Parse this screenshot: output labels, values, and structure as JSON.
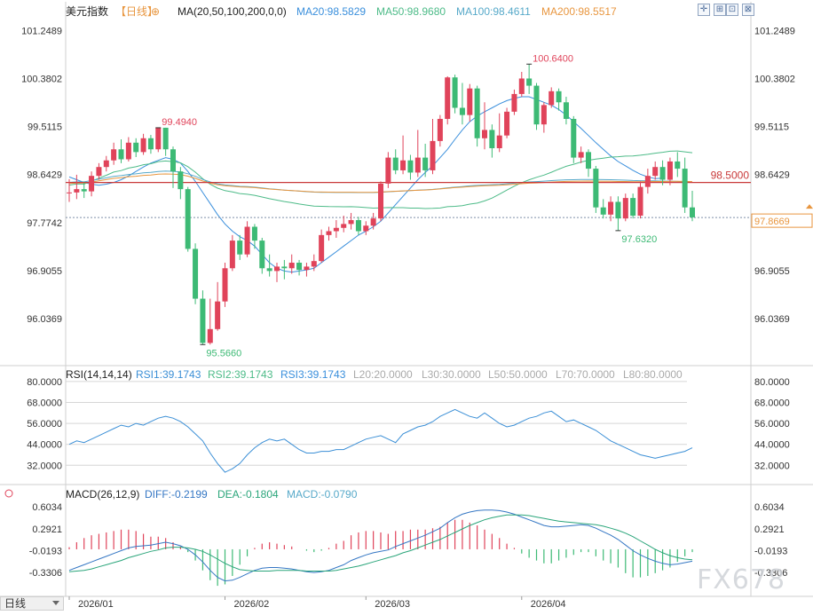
{
  "header": {
    "instrument": "美元指数",
    "period": "【日线】",
    "ma_label": "MA(20,50,100,200,0,0)",
    "ma20": "MA20:98.5829",
    "ma50": "MA50:98.9680",
    "ma100": "MA100:98.4611",
    "ma200": "MA200:98.5517"
  },
  "rsi_header": {
    "label": "RSI(14,14,14)",
    "rsi1": "RSI1:39.1743",
    "rsi2": "RSI2:39.1743",
    "rsi3": "RSI3:39.1743",
    "l20": "L20:20.0000",
    "l30": "L30:30.0000",
    "l50": "L50:50.0000",
    "l70": "L70:70.0000",
    "l80": "L80:80.0000"
  },
  "macd_header": {
    "label": "MACD(26,12,9)",
    "diff": "DIFF:-0.2199",
    "dea": "DEA:-0.1804",
    "macd": "MACD:-0.0790"
  },
  "footer": {
    "period_tab": "日线",
    "watermark": "FX678"
  },
  "colors": {
    "up": "#e0435a",
    "down": "#3dba75",
    "ma20": "#3a8fdc",
    "ma50": "#4dbb88",
    "ma100": "#57a9c9",
    "ma200": "#e8963f",
    "hline": "#c93a3a",
    "grid": "#d6d6d6",
    "axis_text": "#333333",
    "rsi": "#3b8fd6",
    "macd_diff": "#3577c4",
    "macd_dea": "#2aa57a"
  },
  "chart_data": [
    {
      "type": "candlestick",
      "title": "美元指数",
      "x_ticks": [
        "2026/01",
        "2026/02",
        "2026/03",
        "2026/04"
      ],
      "y_ticks": [
        101.2489,
        100.3802,
        99.5115,
        98.6429,
        97.7742,
        96.9055,
        96.0369
      ],
      "ylim": [
        95.35,
        101.35
      ],
      "annotations": {
        "high": "100.6400",
        "high_early": "99.4940",
        "low": "95.5660",
        "low_recent": "97.6320"
      },
      "horizontal_line": {
        "value": 98.5,
        "label": "98.5000"
      },
      "last_price": {
        "value": 97.8669,
        "label": "97.8669"
      },
      "candles": [
        {
          "o": 98.32,
          "c": 98.32,
          "h": 98.56,
          "l": 98.15
        },
        {
          "o": 98.32,
          "c": 98.38,
          "h": 98.64,
          "l": 98.2
        },
        {
          "o": 98.38,
          "c": 98.34,
          "h": 98.5,
          "l": 98.22
        },
        {
          "o": 98.34,
          "c": 98.62,
          "h": 98.7,
          "l": 98.25
        },
        {
          "o": 98.62,
          "c": 98.78,
          "h": 98.85,
          "l": 98.55
        },
        {
          "o": 98.78,
          "c": 98.9,
          "h": 98.98,
          "l": 98.7
        },
        {
          "o": 98.9,
          "c": 99.1,
          "h": 99.22,
          "l": 98.82
        },
        {
          "o": 99.1,
          "c": 98.92,
          "h": 99.28,
          "l": 98.85
        },
        {
          "o": 98.92,
          "c": 99.22,
          "h": 99.32,
          "l": 98.88
        },
        {
          "o": 99.22,
          "c": 99.05,
          "h": 99.3,
          "l": 98.96
        },
        {
          "o": 99.05,
          "c": 99.3,
          "h": 99.38,
          "l": 99.0
        },
        {
          "o": 99.3,
          "c": 99.1,
          "h": 99.36,
          "l": 99.02
        },
        {
          "o": 99.1,
          "c": 99.49,
          "h": 99.49,
          "l": 99.05
        },
        {
          "o": 99.49,
          "c": 99.1,
          "h": 99.49,
          "l": 98.98
        },
        {
          "o": 99.1,
          "c": 98.7,
          "h": 99.15,
          "l": 98.4
        },
        {
          "o": 98.7,
          "c": 98.38,
          "h": 98.78,
          "l": 98.2
        },
        {
          "o": 98.38,
          "c": 97.3,
          "h": 98.42,
          "l": 97.25
        },
        {
          "o": 97.3,
          "c": 96.4,
          "h": 97.4,
          "l": 96.3
        },
        {
          "o": 96.4,
          "c": 95.6,
          "h": 96.55,
          "l": 95.57
        },
        {
          "o": 95.6,
          "c": 95.85,
          "h": 96.4,
          "l": 95.57
        },
        {
          "o": 95.85,
          "c": 96.35,
          "h": 96.7,
          "l": 95.82
        },
        {
          "o": 96.35,
          "c": 96.95,
          "h": 97.05,
          "l": 96.25
        },
        {
          "o": 96.95,
          "c": 97.45,
          "h": 97.55,
          "l": 96.9
        },
        {
          "o": 97.45,
          "c": 97.2,
          "h": 97.55,
          "l": 97.1
        },
        {
          "o": 97.2,
          "c": 97.7,
          "h": 97.8,
          "l": 97.15
        },
        {
          "o": 97.7,
          "c": 97.45,
          "h": 97.75,
          "l": 97.3
        },
        {
          "o": 97.45,
          "c": 96.95,
          "h": 97.5,
          "l": 96.85
        },
        {
          "o": 96.95,
          "c": 96.9,
          "h": 97.2,
          "l": 96.8
        },
        {
          "o": 96.9,
          "c": 96.98,
          "h": 97.05,
          "l": 96.7
        },
        {
          "o": 96.98,
          "c": 96.95,
          "h": 97.1,
          "l": 96.75
        },
        {
          "o": 96.95,
          "c": 97.05,
          "h": 97.2,
          "l": 96.85
        },
        {
          "o": 97.05,
          "c": 96.92,
          "h": 97.1,
          "l": 96.82
        },
        {
          "o": 96.92,
          "c": 96.98,
          "h": 97.05,
          "l": 96.8
        },
        {
          "o": 96.98,
          "c": 97.08,
          "h": 97.2,
          "l": 96.9
        },
        {
          "o": 97.08,
          "c": 97.55,
          "h": 97.65,
          "l": 97.05
        },
        {
          "o": 97.55,
          "c": 97.62,
          "h": 97.7,
          "l": 97.45
        },
        {
          "o": 97.62,
          "c": 97.68,
          "h": 97.82,
          "l": 97.5
        },
        {
          "o": 97.68,
          "c": 97.75,
          "h": 97.9,
          "l": 97.6
        },
        {
          "o": 97.75,
          "c": 97.82,
          "h": 97.95,
          "l": 97.65
        },
        {
          "o": 97.82,
          "c": 97.62,
          "h": 97.88,
          "l": 97.55
        },
        {
          "o": 97.62,
          "c": 97.72,
          "h": 97.8,
          "l": 97.55
        },
        {
          "o": 97.72,
          "c": 97.85,
          "h": 97.95,
          "l": 97.65
        },
        {
          "o": 97.85,
          "c": 98.48,
          "h": 98.52,
          "l": 97.8
        },
        {
          "o": 98.48,
          "c": 98.95,
          "h": 99.05,
          "l": 98.4
        },
        {
          "o": 98.95,
          "c": 98.72,
          "h": 99.1,
          "l": 98.65
        },
        {
          "o": 98.72,
          "c": 98.9,
          "h": 99.35,
          "l": 98.65
        },
        {
          "o": 98.9,
          "c": 98.68,
          "h": 99.0,
          "l": 98.55
        },
        {
          "o": 98.68,
          "c": 98.95,
          "h": 99.45,
          "l": 98.6
        },
        {
          "o": 98.95,
          "c": 98.72,
          "h": 99.2,
          "l": 98.6
        },
        {
          "o": 98.72,
          "c": 99.25,
          "h": 99.65,
          "l": 98.65
        },
        {
          "o": 99.25,
          "c": 99.65,
          "h": 99.72,
          "l": 99.15
        },
        {
          "o": 99.65,
          "c": 100.4,
          "h": 100.42,
          "l": 99.55
        },
        {
          "o": 100.4,
          "c": 99.85,
          "h": 100.45,
          "l": 99.75
        },
        {
          "o": 99.85,
          "c": 99.72,
          "h": 100.3,
          "l": 99.55
        },
        {
          "o": 99.72,
          "c": 100.2,
          "h": 100.28,
          "l": 99.6
        },
        {
          "o": 100.2,
          "c": 99.3,
          "h": 100.25,
          "l": 99.15
        },
        {
          "o": 99.3,
          "c": 99.45,
          "h": 99.95,
          "l": 99.1
        },
        {
          "o": 99.45,
          "c": 99.12,
          "h": 99.55,
          "l": 98.95
        },
        {
          "o": 99.12,
          "c": 99.35,
          "h": 99.75,
          "l": 99.05
        },
        {
          "o": 99.35,
          "c": 99.78,
          "h": 99.85,
          "l": 99.3
        },
        {
          "o": 99.78,
          "c": 100.1,
          "h": 100.18,
          "l": 99.72
        },
        {
          "o": 100.1,
          "c": 100.38,
          "h": 100.5,
          "l": 100.05
        },
        {
          "o": 100.38,
          "c": 100.25,
          "h": 100.64,
          "l": 100.1
        },
        {
          "o": 100.25,
          "c": 99.55,
          "h": 100.3,
          "l": 99.45
        },
        {
          "o": 99.55,
          "c": 99.9,
          "h": 99.95,
          "l": 99.4
        },
        {
          "o": 99.9,
          "c": 100.15,
          "h": 100.22,
          "l": 99.85
        },
        {
          "o": 100.15,
          "c": 99.95,
          "h": 100.2,
          "l": 99.8
        },
        {
          "o": 99.95,
          "c": 99.65,
          "h": 100.05,
          "l": 99.55
        },
        {
          "o": 99.65,
          "c": 98.95,
          "h": 99.7,
          "l": 98.85
        },
        {
          "o": 98.95,
          "c": 99.05,
          "h": 99.15,
          "l": 98.85
        },
        {
          "o": 99.05,
          "c": 98.75,
          "h": 99.1,
          "l": 98.6
        },
        {
          "o": 98.75,
          "c": 98.05,
          "h": 98.8,
          "l": 97.95
        },
        {
          "o": 98.05,
          "c": 97.92,
          "h": 98.2,
          "l": 97.85
        },
        {
          "o": 97.92,
          "c": 98.15,
          "h": 98.25,
          "l": 97.8
        },
        {
          "o": 98.15,
          "c": 97.85,
          "h": 98.25,
          "l": 97.63
        },
        {
          "o": 97.85,
          "c": 98.22,
          "h": 98.3,
          "l": 97.8
        },
        {
          "o": 98.22,
          "c": 97.9,
          "h": 98.3,
          "l": 97.85
        },
        {
          "o": 97.9,
          "c": 98.42,
          "h": 98.52,
          "l": 97.85
        },
        {
          "o": 98.42,
          "c": 98.62,
          "h": 98.75,
          "l": 98.3
        },
        {
          "o": 98.62,
          "c": 98.78,
          "h": 98.88,
          "l": 98.55
        },
        {
          "o": 98.78,
          "c": 98.55,
          "h": 98.9,
          "l": 98.45
        },
        {
          "o": 98.55,
          "c": 98.88,
          "h": 98.95,
          "l": 98.45
        },
        {
          "o": 98.88,
          "c": 98.75,
          "h": 99.05,
          "l": 98.6
        },
        {
          "o": 98.75,
          "c": 98.05,
          "h": 98.95,
          "l": 97.95
        },
        {
          "o": 98.05,
          "c": 97.87,
          "h": 98.35,
          "l": 97.8
        }
      ]
    },
    {
      "type": "line",
      "title": "RSI(14,14,14)",
      "y_ticks": [
        80,
        68,
        56,
        44,
        32
      ],
      "ylim": [
        24,
        82
      ],
      "levels": [
        80,
        70,
        50,
        30,
        20
      ],
      "values": [
        44,
        46,
        45,
        47,
        49,
        51,
        53,
        55,
        54,
        56,
        55,
        57,
        59,
        60,
        59,
        57,
        54,
        50,
        46,
        39,
        33,
        28,
        30,
        33,
        38,
        42,
        45,
        47,
        46,
        47,
        44,
        41,
        39,
        39,
        40,
        40,
        41,
        41,
        43,
        45,
        47,
        48,
        49,
        47,
        45,
        50,
        52,
        54,
        55,
        57,
        60,
        62,
        64,
        62,
        60,
        59,
        62,
        59,
        56,
        54,
        55,
        57,
        59,
        60,
        62,
        63,
        60,
        57,
        58,
        56,
        54,
        52,
        49,
        46,
        44,
        42,
        40,
        38,
        37,
        36,
        37,
        38,
        39,
        40,
        42,
        44,
        43,
        46,
        48,
        46,
        45,
        47,
        50,
        52,
        49,
        44,
        39
      ]
    },
    {
      "type": "bar+line",
      "title": "MACD(26,12,9)",
      "y_ticks": [
        0.6034,
        0.2921,
        -0.0193,
        -0.3306
      ],
      "ylim": [
        -0.62,
        0.72
      ],
      "series": [
        {
          "name": "DIFF",
          "values": [
            -0.3,
            -0.26,
            -0.22,
            -0.18,
            -0.14,
            -0.1,
            -0.06,
            -0.02,
            0.02,
            0.04,
            0.05,
            0.06,
            0.08,
            0.1,
            0.08,
            0.05,
            0.0,
            -0.08,
            -0.18,
            -0.3,
            -0.4,
            -0.45,
            -0.44,
            -0.4,
            -0.35,
            -0.3,
            -0.27,
            -0.26,
            -0.26,
            -0.27,
            -0.28,
            -0.3,
            -0.32,
            -0.33,
            -0.32,
            -0.3,
            -0.26,
            -0.22,
            -0.16,
            -0.12,
            -0.08,
            -0.05,
            -0.03,
            -0.01,
            0.04,
            0.08,
            0.12,
            0.16,
            0.2,
            0.25,
            0.3,
            0.38,
            0.45,
            0.5,
            0.53,
            0.55,
            0.56,
            0.56,
            0.55,
            0.53,
            0.5,
            0.46,
            0.42,
            0.38,
            0.34,
            0.32,
            0.32,
            0.33,
            0.34,
            0.35,
            0.34,
            0.3,
            0.25,
            0.2,
            0.14,
            0.06,
            -0.02,
            -0.08,
            -0.13,
            -0.17,
            -0.2,
            -0.22,
            -0.21,
            -0.19,
            -0.17,
            -0.16,
            -0.15,
            -0.16,
            -0.18,
            -0.2,
            -0.21,
            -0.22,
            -0.21,
            -0.2,
            -0.21,
            -0.22
          ]
        },
        {
          "name": "DEA",
          "values": [
            -0.32,
            -0.31,
            -0.3,
            -0.28,
            -0.25,
            -0.22,
            -0.19,
            -0.16,
            -0.12,
            -0.09,
            -0.06,
            -0.03,
            -0.01,
            0.02,
            0.03,
            0.03,
            0.02,
            0.0,
            -0.03,
            -0.08,
            -0.14,
            -0.2,
            -0.25,
            -0.29,
            -0.3,
            -0.31,
            -0.31,
            -0.31,
            -0.3,
            -0.3,
            -0.3,
            -0.3,
            -0.31,
            -0.31,
            -0.31,
            -0.31,
            -0.3,
            -0.28,
            -0.26,
            -0.24,
            -0.21,
            -0.18,
            -0.15,
            -0.12,
            -0.09,
            -0.05,
            -0.02,
            0.02,
            0.06,
            0.1,
            0.14,
            0.19,
            0.24,
            0.29,
            0.34,
            0.38,
            0.42,
            0.45,
            0.47,
            0.49,
            0.49,
            0.49,
            0.48,
            0.46,
            0.44,
            0.42,
            0.4,
            0.39,
            0.38,
            0.37,
            0.36,
            0.35,
            0.33,
            0.3,
            0.27,
            0.23,
            0.18,
            0.12,
            0.06,
            0.0,
            -0.05,
            -0.09,
            -0.12,
            -0.14,
            -0.15,
            -0.15,
            -0.15,
            -0.15,
            -0.16,
            -0.16,
            -0.17,
            -0.17,
            -0.18,
            -0.18,
            -0.18,
            -0.18
          ]
        }
      ],
      "histogram": [
        0.03,
        0.1,
        0.16,
        0.2,
        0.22,
        0.24,
        0.26,
        0.28,
        0.28,
        0.26,
        0.22,
        0.18,
        0.18,
        0.16,
        0.1,
        0.04,
        -0.04,
        -0.16,
        -0.3,
        -0.44,
        -0.52,
        -0.5,
        -0.38,
        -0.22,
        -0.1,
        0.02,
        0.08,
        0.1,
        0.08,
        0.06,
        0.04,
        0.0,
        -0.02,
        -0.04,
        -0.02,
        0.02,
        0.08,
        0.12,
        0.2,
        0.24,
        0.26,
        0.26,
        0.24,
        0.22,
        0.26,
        0.26,
        0.28,
        0.28,
        0.28,
        0.3,
        0.32,
        0.38,
        0.42,
        0.42,
        0.38,
        0.34,
        0.28,
        0.22,
        0.16,
        0.08,
        0.02,
        -0.06,
        -0.12,
        -0.16,
        -0.2,
        -0.2,
        -0.16,
        -0.12,
        -0.08,
        -0.04,
        -0.04,
        -0.1,
        -0.16,
        -0.2,
        -0.26,
        -0.34,
        -0.4,
        -0.4,
        -0.38,
        -0.34,
        -0.3,
        -0.26,
        -0.18,
        -0.1,
        -0.04,
        -0.02,
        0.0,
        -0.02,
        -0.04,
        -0.06,
        -0.08,
        -0.08,
        -0.06,
        -0.04,
        -0.06,
        -0.08
      ]
    }
  ],
  "ma_lines": {
    "ma20": [
      98.6,
      98.55,
      98.5,
      98.47,
      98.45,
      98.47,
      98.5,
      98.55,
      98.62,
      98.7,
      98.78,
      98.85,
      98.9,
      98.95,
      98.92,
      98.85,
      98.7,
      98.52,
      98.32,
      98.12,
      97.92,
      97.75,
      97.62,
      97.52,
      97.45,
      97.35,
      97.2,
      97.05,
      96.95,
      96.9,
      96.88,
      96.9,
      96.92,
      96.95,
      97.05,
      97.15,
      97.25,
      97.35,
      97.45,
      97.55,
      97.62,
      97.7,
      97.8,
      97.95,
      98.1,
      98.25,
      98.4,
      98.55,
      98.68,
      98.8,
      98.95,
      99.1,
      99.28,
      99.45,
      99.6,
      99.7,
      99.78,
      99.85,
      99.92,
      99.98,
      100.02,
      100.05,
      100.05,
      100.0,
      99.95,
      99.9,
      99.82,
      99.72,
      99.6,
      99.48,
      99.35,
      99.22,
      99.1,
      98.98,
      98.88,
      98.8,
      98.72,
      98.65,
      98.6,
      98.57,
      98.58
    ]
  }
}
